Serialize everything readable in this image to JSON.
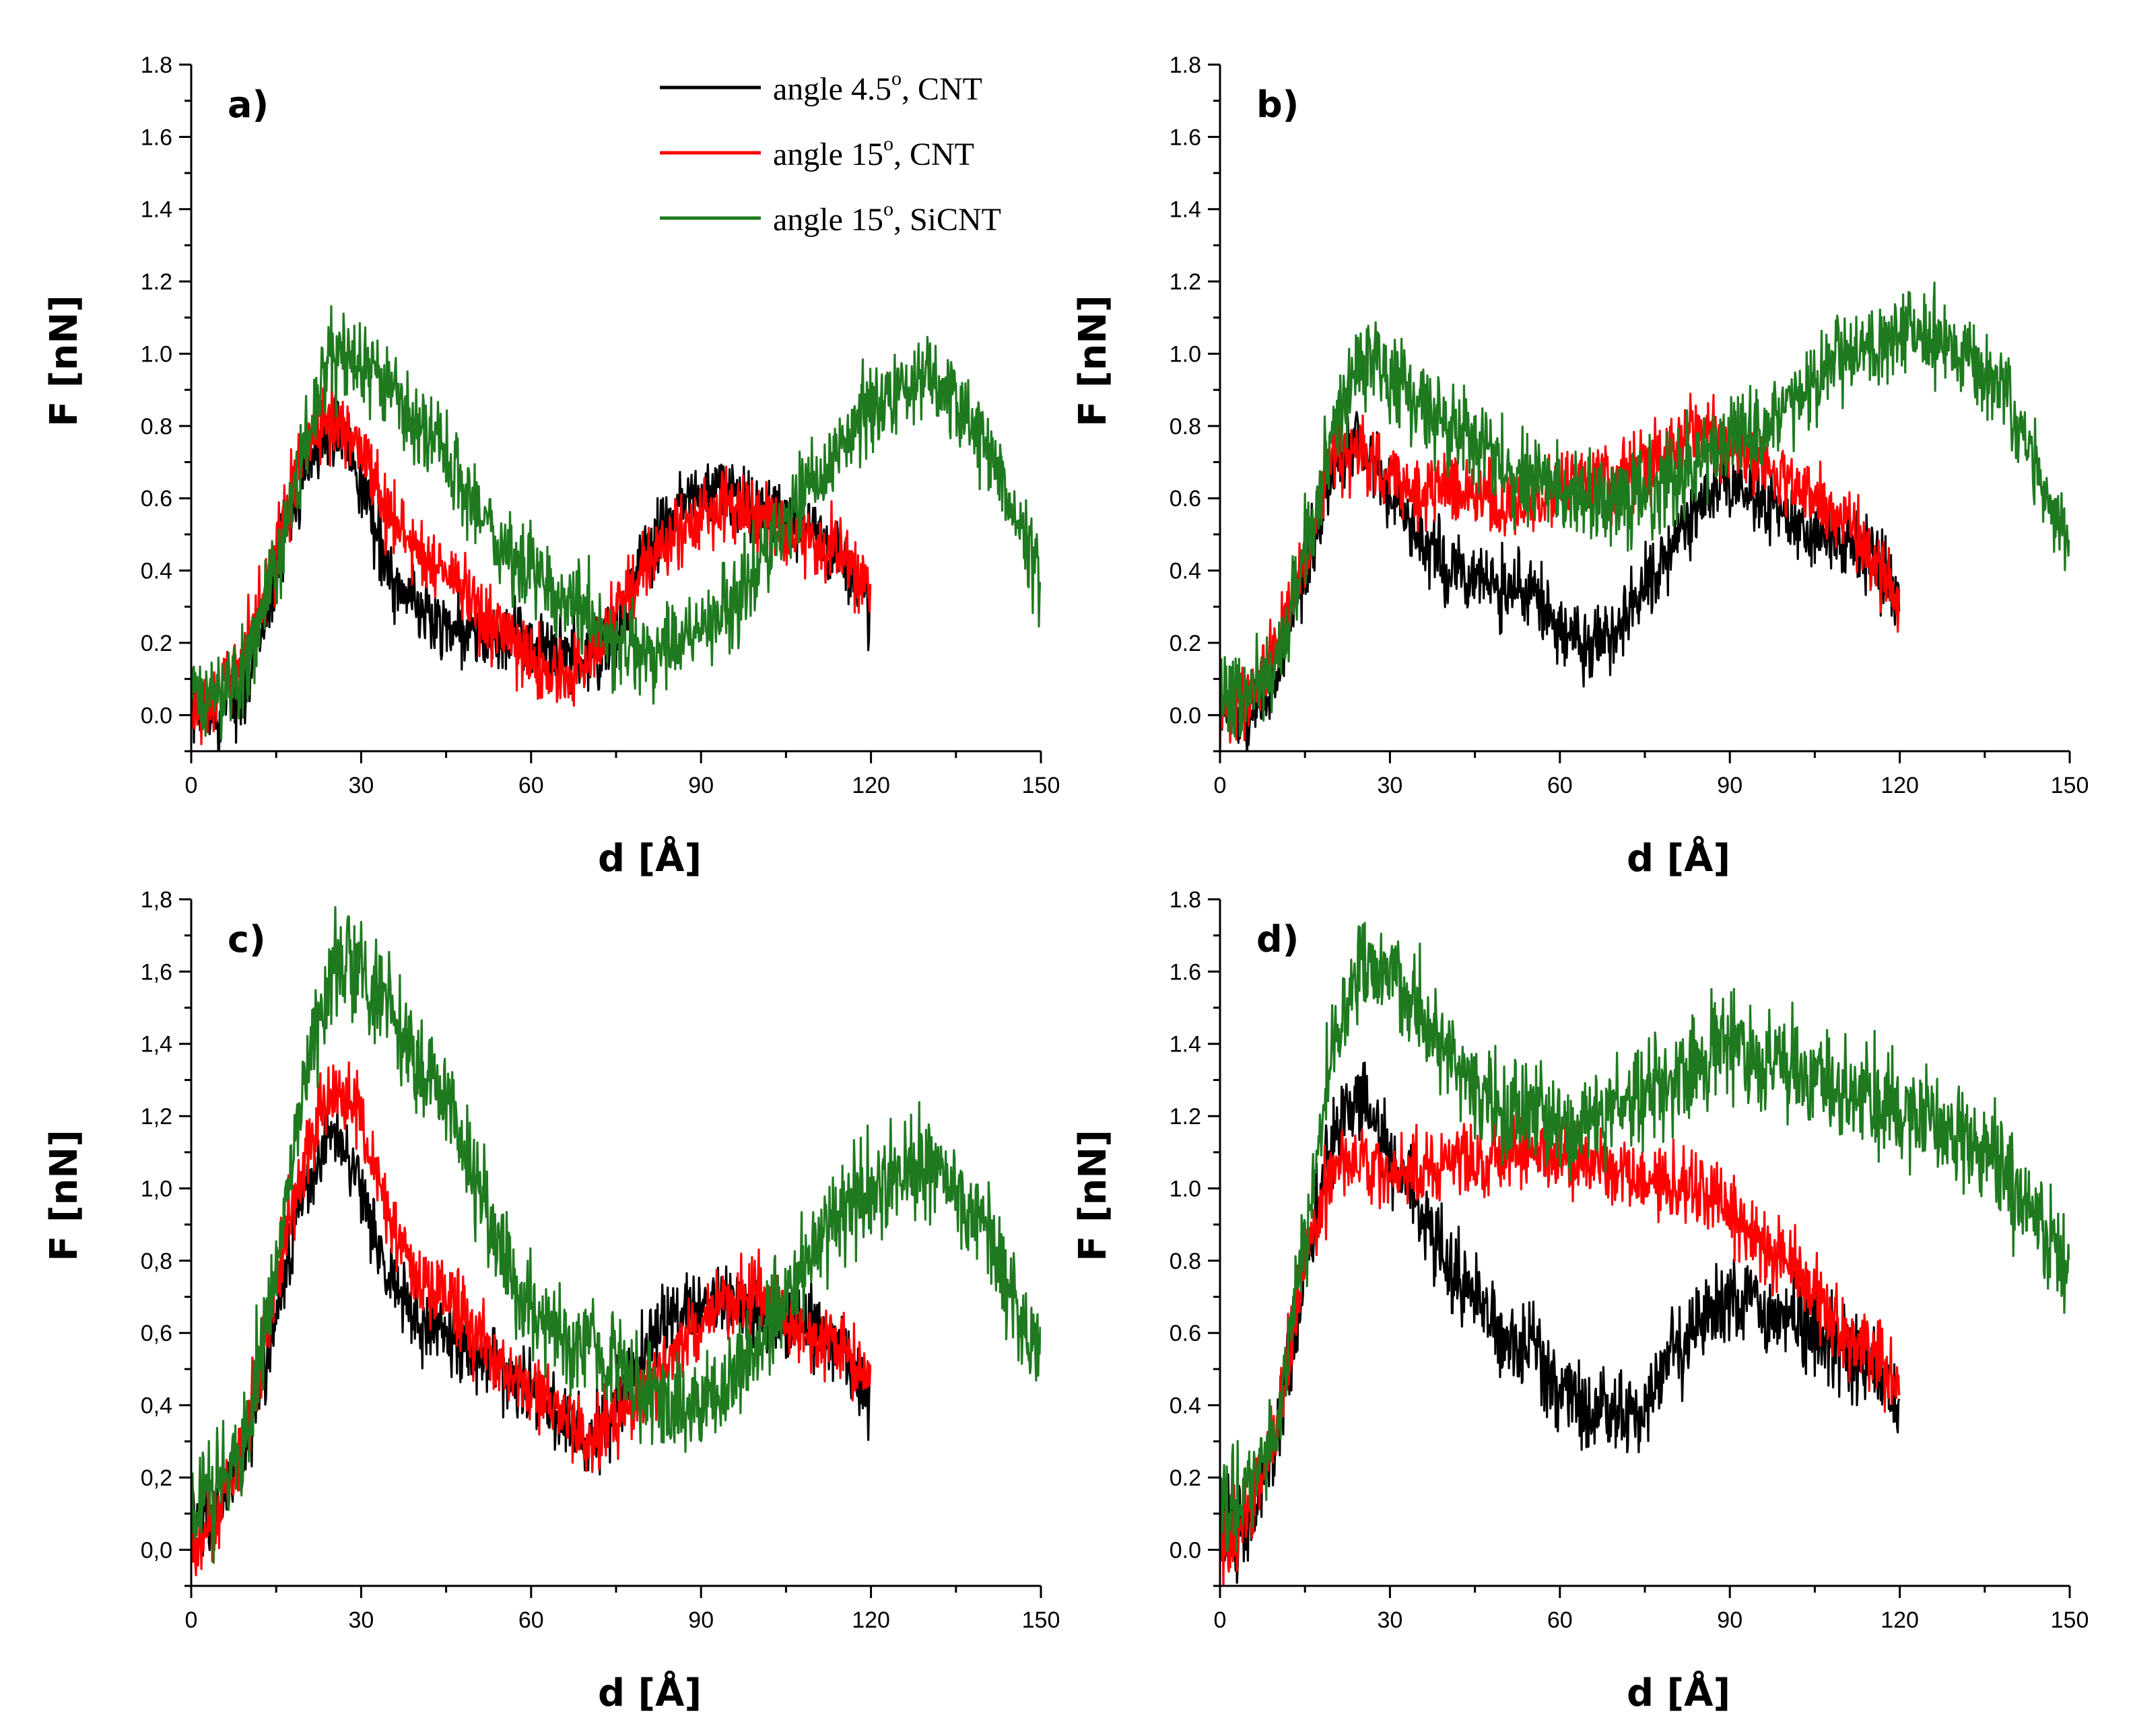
{
  "chart_data": [
    {
      "type": "line",
      "panel_label": "a)",
      "xlabel": "d [Å]",
      "ylabel": "F [nN]",
      "xlim": [
        0,
        150
      ],
      "ylim": [
        -0.1,
        1.8
      ],
      "xticks": [
        "0",
        "30",
        "60",
        "90",
        "120",
        "150"
      ],
      "yticks": [
        "0.0",
        "0.2",
        "0.4",
        "0.6",
        "0.8",
        "1.0",
        "1.2",
        "1.4",
        "1.6",
        "1.8"
      ],
      "legend": [
        {
          "pre": "angle 4.5",
          "sup": "o",
          "post": ", CNT"
        },
        {
          "pre": "angle 15",
          "sup": "o",
          "post": ", CNT"
        },
        {
          "pre": "angle 15",
          "sup": "o",
          "post": ", SiCNT"
        }
      ],
      "series": [
        {
          "name": "angle 4.5°, CNT",
          "color": "#000000",
          "noise": 0.05,
          "x": [
            0,
            5,
            10,
            15,
            20,
            25,
            28,
            32,
            36,
            40,
            45,
            50,
            55,
            60,
            65,
            70,
            75,
            80,
            85,
            90,
            95,
            100,
            105,
            110,
            115,
            120
          ],
          "y": [
            0.0,
            0.0,
            0.1,
            0.4,
            0.7,
            0.78,
            0.75,
            0.55,
            0.35,
            0.3,
            0.25,
            0.22,
            0.2,
            0.2,
            0.15,
            0.15,
            0.2,
            0.45,
            0.55,
            0.62,
            0.6,
            0.58,
            0.55,
            0.5,
            0.45,
            0.28
          ]
        },
        {
          "name": "angle 15°, CNT",
          "color": "#ff0000",
          "noise": 0.05,
          "x": [
            0,
            5,
            10,
            15,
            20,
            25,
            30,
            35,
            40,
            45,
            50,
            55,
            60,
            65,
            70,
            75,
            80,
            85,
            90,
            95,
            100,
            105,
            110,
            115,
            120
          ],
          "y": [
            0.0,
            0.05,
            0.2,
            0.45,
            0.75,
            0.82,
            0.75,
            0.55,
            0.45,
            0.4,
            0.3,
            0.22,
            0.15,
            0.1,
            0.15,
            0.3,
            0.4,
            0.5,
            0.55,
            0.58,
            0.55,
            0.5,
            0.48,
            0.45,
            0.33
          ]
        },
        {
          "name": "angle 15°, SiCNT",
          "color": "#1f7a1f",
          "noise": 0.06,
          "x": [
            0,
            5,
            10,
            15,
            20,
            25,
            30,
            35,
            40,
            45,
            50,
            55,
            60,
            65,
            70,
            75,
            80,
            85,
            90,
            95,
            100,
            105,
            110,
            115,
            120,
            125,
            130,
            135,
            140,
            145,
            150
          ],
          "y": [
            0.05,
            0.05,
            0.15,
            0.4,
            0.75,
            1.0,
            0.97,
            0.9,
            0.8,
            0.7,
            0.6,
            0.45,
            0.4,
            0.35,
            0.28,
            0.2,
            0.15,
            0.2,
            0.25,
            0.3,
            0.4,
            0.55,
            0.65,
            0.75,
            0.85,
            0.9,
            0.92,
            0.88,
            0.75,
            0.55,
            0.4
          ]
        }
      ]
    },
    {
      "type": "line",
      "panel_label": "b)",
      "xlabel": "d [Å]",
      "ylabel": "F [nN]",
      "xlim": [
        0,
        150
      ],
      "ylim": [
        -0.1,
        1.8
      ],
      "xticks": [
        "0",
        "30",
        "60",
        "90",
        "120",
        "150"
      ],
      "yticks": [
        "0.0",
        "0.2",
        "0.4",
        "0.6",
        "0.8",
        "1.0",
        "1.2",
        "1.4",
        "1.6",
        "1.8"
      ],
      "series": [
        {
          "name": "angle 4.5°, CNT",
          "color": "#000000",
          "noise": 0.05,
          "x": [
            0,
            5,
            10,
            15,
            20,
            25,
            30,
            35,
            40,
            45,
            50,
            55,
            60,
            65,
            70,
            75,
            80,
            85,
            90,
            95,
            100,
            105,
            110,
            115,
            120
          ],
          "y": [
            0.0,
            0.0,
            0.1,
            0.4,
            0.7,
            0.78,
            0.6,
            0.5,
            0.42,
            0.38,
            0.35,
            0.35,
            0.25,
            0.18,
            0.25,
            0.35,
            0.5,
            0.6,
            0.65,
            0.6,
            0.55,
            0.5,
            0.48,
            0.45,
            0.3
          ]
        },
        {
          "name": "angle 15°, CNT",
          "color": "#ff0000",
          "noise": 0.05,
          "x": [
            0,
            5,
            10,
            15,
            20,
            25,
            30,
            35,
            40,
            45,
            50,
            55,
            60,
            65,
            70,
            75,
            80,
            85,
            90,
            95,
            100,
            105,
            110,
            115,
            120
          ],
          "y": [
            0.0,
            0.05,
            0.2,
            0.45,
            0.72,
            0.72,
            0.65,
            0.62,
            0.65,
            0.62,
            0.58,
            0.6,
            0.62,
            0.65,
            0.65,
            0.7,
            0.75,
            0.8,
            0.75,
            0.7,
            0.65,
            0.6,
            0.55,
            0.45,
            0.3
          ]
        },
        {
          "name": "angle 15°, SiCNT",
          "color": "#1f7a1f",
          "noise": 0.06,
          "x": [
            0,
            5,
            10,
            15,
            20,
            25,
            30,
            35,
            40,
            45,
            50,
            55,
            60,
            65,
            70,
            75,
            80,
            85,
            90,
            95,
            100,
            105,
            110,
            115,
            120,
            125,
            130,
            135,
            140,
            145,
            150
          ],
          "y": [
            0.05,
            0.05,
            0.15,
            0.45,
            0.8,
            1.0,
            0.95,
            0.88,
            0.8,
            0.75,
            0.7,
            0.65,
            0.62,
            0.6,
            0.6,
            0.62,
            0.65,
            0.7,
            0.75,
            0.8,
            0.85,
            0.92,
            0.98,
            1.02,
            1.05,
            1.05,
            1.0,
            0.95,
            0.85,
            0.65,
            0.45
          ]
        }
      ]
    },
    {
      "type": "line",
      "panel_label": "c)",
      "xlabel": "d [Å]",
      "ylabel": "F [nN]",
      "xlim": [
        0,
        150
      ],
      "ylim": [
        -0.1,
        1.8
      ],
      "xticks": [
        "0",
        "30",
        "60",
        "90",
        "120",
        "150"
      ],
      "yticks": [
        "0,0",
        "0,2",
        "0,4",
        "0,6",
        "0,8",
        "1,0",
        "1,2",
        "1,4",
        "1,6",
        "1,8"
      ],
      "series": [
        {
          "name": "angle 4.5°, CNT",
          "color": "#000000",
          "noise": 0.05,
          "x": [
            0,
            5,
            10,
            15,
            20,
            25,
            30,
            35,
            40,
            45,
            50,
            55,
            60,
            65,
            70,
            75,
            80,
            85,
            90,
            95,
            100,
            105,
            110,
            115,
            120
          ],
          "y": [
            0.1,
            0.1,
            0.3,
            0.65,
            1.0,
            1.15,
            1.0,
            0.75,
            0.65,
            0.6,
            0.55,
            0.5,
            0.45,
            0.35,
            0.3,
            0.4,
            0.55,
            0.65,
            0.7,
            0.68,
            0.65,
            0.62,
            0.6,
            0.55,
            0.4
          ]
        },
        {
          "name": "angle 15°, CNT",
          "color": "#ff0000",
          "noise": 0.05,
          "x": [
            0,
            5,
            10,
            15,
            20,
            25,
            30,
            35,
            40,
            45,
            50,
            55,
            60,
            65,
            70,
            75,
            80,
            85,
            90,
            95,
            100,
            105,
            110,
            115,
            120
          ],
          "y": [
            0.0,
            0.1,
            0.35,
            0.75,
            1.1,
            1.28,
            1.2,
            0.9,
            0.75,
            0.7,
            0.6,
            0.5,
            0.45,
            0.4,
            0.3,
            0.35,
            0.45,
            0.55,
            0.62,
            0.7,
            0.72,
            0.65,
            0.6,
            0.55,
            0.45
          ]
        },
        {
          "name": "angle 15°, SiCNT",
          "color": "#1f7a1f",
          "noise": 0.07,
          "x": [
            0,
            5,
            10,
            15,
            20,
            25,
            30,
            35,
            40,
            45,
            50,
            55,
            60,
            65,
            70,
            75,
            80,
            85,
            90,
            95,
            100,
            105,
            110,
            115,
            120,
            125,
            130,
            135,
            140,
            145,
            150
          ],
          "y": [
            0.1,
            0.15,
            0.35,
            0.8,
            1.3,
            1.62,
            1.6,
            1.5,
            1.35,
            1.25,
            1.05,
            0.8,
            0.65,
            0.58,
            0.55,
            0.5,
            0.45,
            0.4,
            0.4,
            0.45,
            0.55,
            0.7,
            0.85,
            0.95,
            1.0,
            1.05,
            1.05,
            1.0,
            0.9,
            0.7,
            0.5
          ]
        }
      ]
    },
    {
      "type": "line",
      "panel_label": "d)",
      "xlabel": "d [Å]",
      "ylabel": "F [nN]",
      "xlim": [
        0,
        150
      ],
      "ylim": [
        -0.1,
        1.8
      ],
      "xticks": [
        "0",
        "30",
        "60",
        "90",
        "120",
        "150"
      ],
      "yticks": [
        "0.0",
        "0.2",
        "0.4",
        "0.6",
        "0.8",
        "1.0",
        "1.2",
        "1.4",
        "1.6",
        "1.8"
      ],
      "series": [
        {
          "name": "angle 4.5°, CNT",
          "color": "#000000",
          "noise": 0.06,
          "x": [
            0,
            5,
            10,
            15,
            20,
            25,
            30,
            35,
            40,
            45,
            50,
            55,
            60,
            65,
            70,
            75,
            80,
            85,
            90,
            95,
            100,
            105,
            110,
            115,
            120
          ],
          "y": [
            0.05,
            0.05,
            0.3,
            0.8,
            1.15,
            1.28,
            1.1,
            0.95,
            0.8,
            0.7,
            0.6,
            0.55,
            0.45,
            0.4,
            0.35,
            0.4,
            0.55,
            0.65,
            0.7,
            0.68,
            0.65,
            0.6,
            0.55,
            0.5,
            0.4
          ]
        },
        {
          "name": "angle 15°, CNT",
          "color": "#ff0000",
          "noise": 0.05,
          "x": [
            0,
            5,
            10,
            15,
            20,
            25,
            30,
            35,
            40,
            45,
            50,
            55,
            60,
            65,
            70,
            75,
            80,
            85,
            90,
            95,
            100,
            105,
            110,
            115,
            120
          ],
          "y": [
            0.0,
            0.1,
            0.35,
            0.8,
            1.05,
            1.1,
            1.05,
            1.05,
            1.08,
            1.1,
            1.08,
            1.1,
            1.1,
            1.08,
            1.05,
            1.02,
            1.0,
            1.0,
            0.95,
            0.85,
            0.8,
            0.7,
            0.6,
            0.55,
            0.45
          ]
        },
        {
          "name": "angle 15°, SiCNT",
          "color": "#1f7a1f",
          "noise": 0.07,
          "x": [
            0,
            5,
            10,
            15,
            20,
            25,
            30,
            35,
            40,
            45,
            50,
            55,
            60,
            65,
            70,
            75,
            80,
            85,
            90,
            95,
            100,
            105,
            110,
            115,
            120,
            125,
            130,
            135,
            140,
            145,
            150
          ],
          "y": [
            0.1,
            0.15,
            0.35,
            0.85,
            1.4,
            1.62,
            1.6,
            1.5,
            1.38,
            1.28,
            1.2,
            1.2,
            1.15,
            1.18,
            1.22,
            1.28,
            1.3,
            1.35,
            1.4,
            1.38,
            1.35,
            1.3,
            1.28,
            1.25,
            1.22,
            1.2,
            1.15,
            1.1,
            1.0,
            0.9,
            0.75
          ]
        }
      ]
    }
  ]
}
